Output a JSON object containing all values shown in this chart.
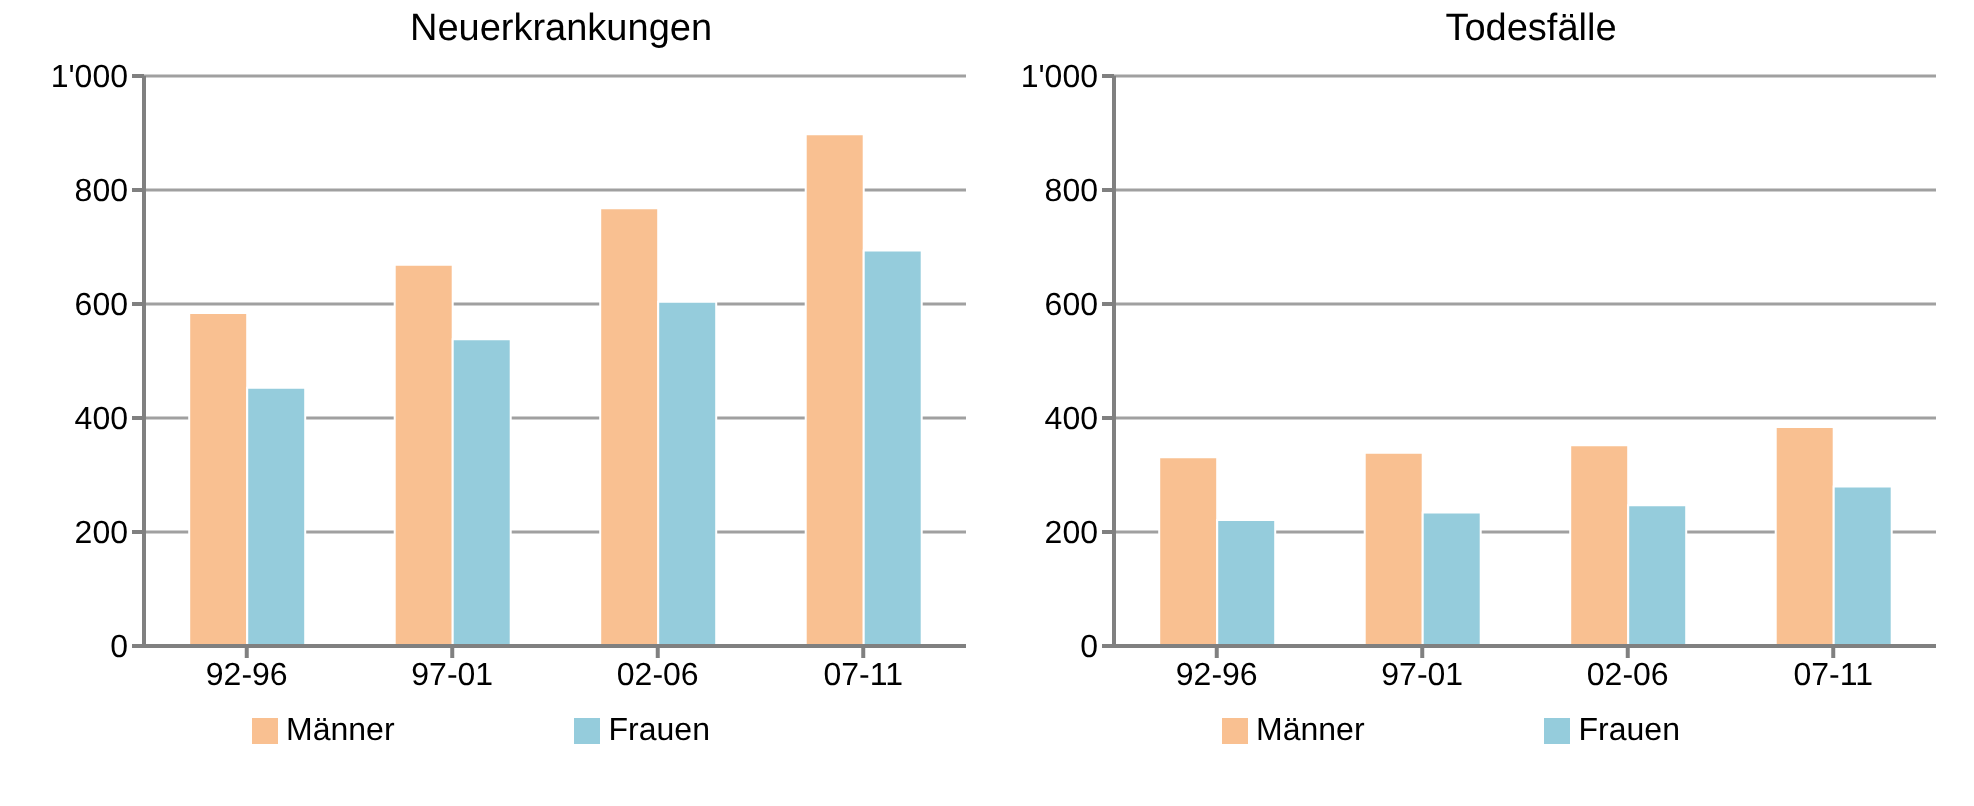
{
  "chart_data": [
    {
      "type": "bar",
      "title": "Neuerkrankungen",
      "categories": [
        "92-96",
        "97-01",
        "02-06",
        "07-11"
      ],
      "series": [
        {
          "name": "Männer",
          "color": "#f9c091",
          "values": [
            584,
            669,
            768,
            898
          ]
        },
        {
          "name": "Frauen",
          "color": "#95ccdc",
          "values": [
            453,
            538,
            604,
            694
          ]
        }
      ],
      "ylim": [
        0,
        1000
      ],
      "yticks": [
        0,
        200,
        400,
        600,
        800,
        {
          "value": 1000,
          "label": "1'000"
        }
      ],
      "grid": "y",
      "legend": "bottom"
    },
    {
      "type": "bar",
      "title": "Todesfälle",
      "categories": [
        "92-96",
        "97-01",
        "02-06",
        "07-11"
      ],
      "series": [
        {
          "name": "Männer",
          "color": "#f9c091",
          "values": [
            331,
            339,
            352,
            384
          ]
        },
        {
          "name": "Frauen",
          "color": "#95ccdc",
          "values": [
            221,
            234,
            247,
            280
          ]
        }
      ],
      "ylim": [
        0,
        1000
      ],
      "yticks": [
        0,
        200,
        400,
        600,
        800,
        {
          "value": 1000,
          "label": "1'000"
        }
      ],
      "grid": "y",
      "legend": "bottom"
    }
  ]
}
